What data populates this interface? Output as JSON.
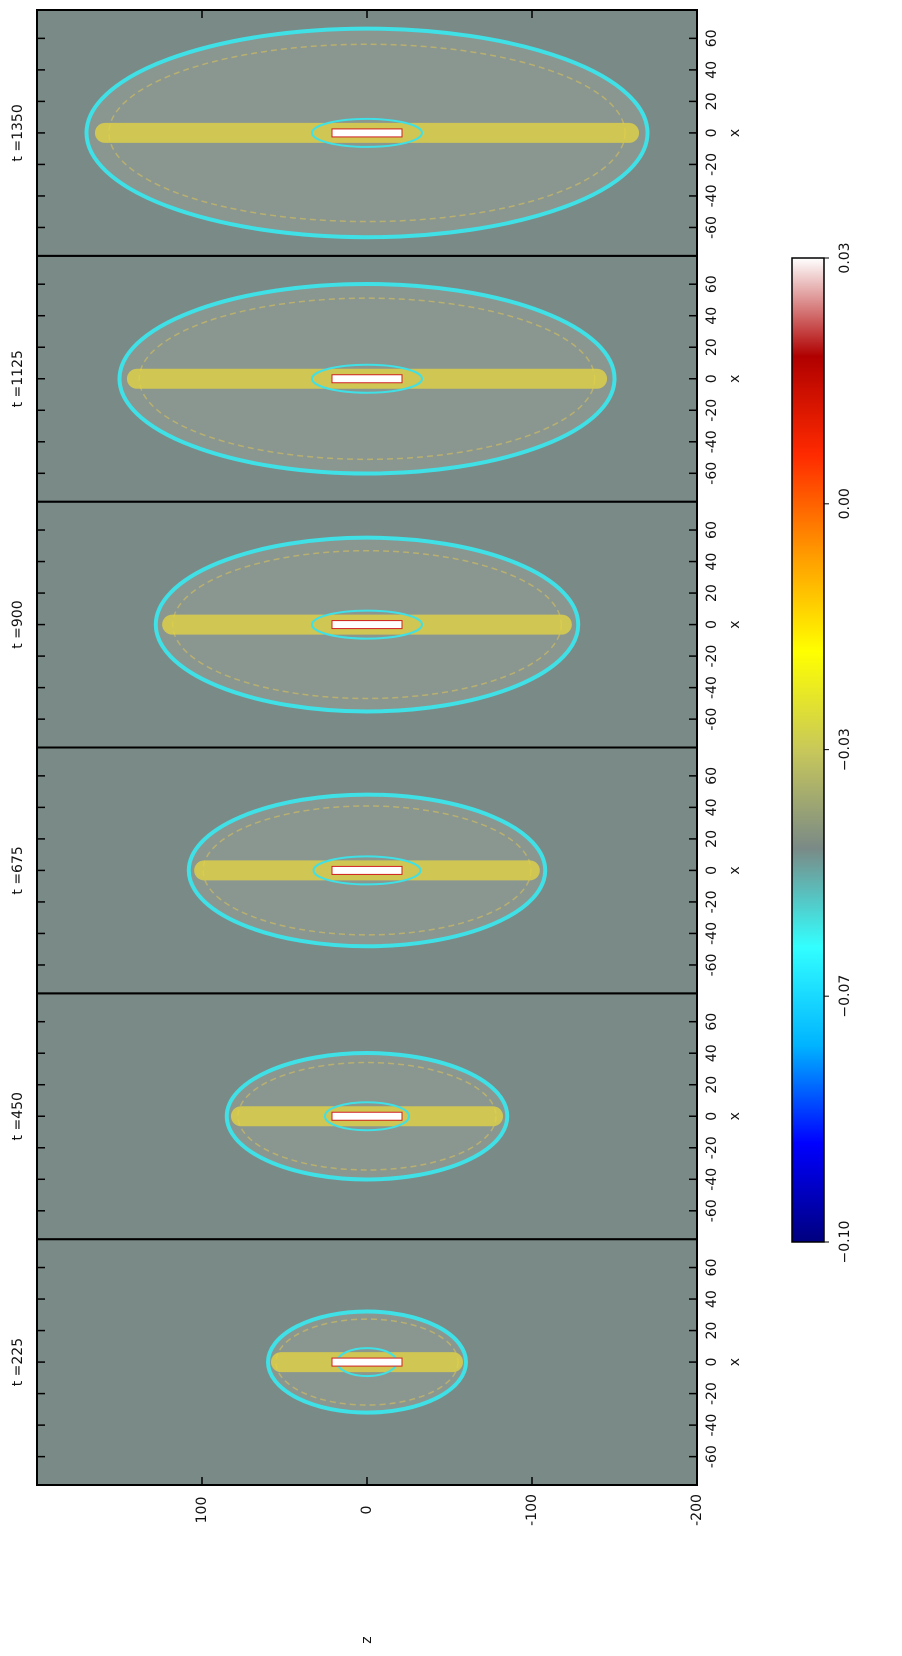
{
  "chart_data": {
    "type": "image",
    "panels": [
      {
        "title": "t =225"
      },
      {
        "title": "t =450"
      },
      {
        "title": "t =675"
      },
      {
        "title": "t =900"
      },
      {
        "title": "t =1125"
      },
      {
        "title": "t =1350"
      }
    ],
    "xlabel": "x",
    "ylabel": "z",
    "xlim": [
      -78,
      78
    ],
    "xticks": [
      -60,
      -40,
      -20,
      0,
      20,
      40,
      60
    ],
    "ylim": [
      -200,
      200
    ],
    "yticks": [
      100,
      0,
      -100,
      -200
    ],
    "colorbar": {
      "lim": [
        -0.1,
        0.0333
      ],
      "ticks": [
        {
          "value": -0.1,
          "label": "−0.10"
        },
        {
          "value": -0.0667,
          "label": "−0.07"
        },
        {
          "value": -0.0333,
          "label": "−0.03"
        },
        {
          "value": 0,
          "label": "0.00"
        },
        {
          "value": 0.0333,
          "label": "0.03"
        }
      ],
      "colors": [
        "#00007f",
        "#0000ff",
        "#00b4ff",
        "#33ffff",
        "#7a8a86",
        "#c8c85a",
        "#ffff00",
        "#ff9900",
        "#ff2a00",
        "#b00000",
        "#ffffff"
      ]
    },
    "background": "#7a8a86"
  }
}
